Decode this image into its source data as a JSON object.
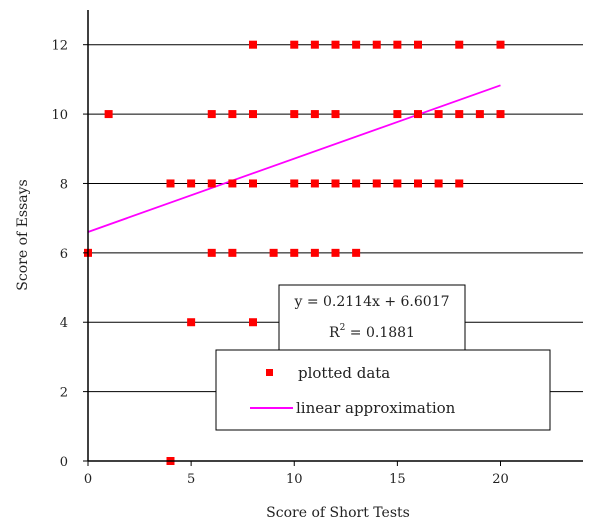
{
  "chart_data": {
    "type": "scatter",
    "title": "",
    "xlabel": "Score of Short Tests",
    "ylabel": "Score of Essays",
    "xlim": [
      0,
      24
    ],
    "ylim": [
      0,
      13
    ],
    "x_ticks": [
      0,
      5,
      10,
      15,
      20
    ],
    "y_ticks": [
      0,
      2,
      4,
      6,
      8,
      10,
      12
    ],
    "grid": "horizontal",
    "legend_placement": "bottom-center",
    "series": [
      {
        "name": "plotted data",
        "color": "#ff0000",
        "points": [
          [
            0,
            6
          ],
          [
            1,
            10
          ],
          [
            4,
            0
          ],
          [
            4,
            8
          ],
          [
            5,
            4
          ],
          [
            5,
            8
          ],
          [
            6,
            6
          ],
          [
            6,
            8
          ],
          [
            6,
            10
          ],
          [
            7,
            6
          ],
          [
            7,
            8
          ],
          [
            7,
            10
          ],
          [
            8,
            4
          ],
          [
            8,
            8
          ],
          [
            8,
            10
          ],
          [
            8,
            12
          ],
          [
            9,
            6
          ],
          [
            10,
            6
          ],
          [
            10,
            8
          ],
          [
            10,
            10
          ],
          [
            10,
            12
          ],
          [
            11,
            6
          ],
          [
            11,
            8
          ],
          [
            11,
            10
          ],
          [
            11,
            12
          ],
          [
            12,
            6
          ],
          [
            12,
            8
          ],
          [
            12,
            10
          ],
          [
            12,
            12
          ],
          [
            13,
            6
          ],
          [
            13,
            8
          ],
          [
            13,
            12
          ],
          [
            14,
            8
          ],
          [
            14,
            12
          ],
          [
            15,
            8
          ],
          [
            15,
            10
          ],
          [
            15,
            12
          ],
          [
            16,
            8
          ],
          [
            16,
            10
          ],
          [
            16,
            12
          ],
          [
            17,
            8
          ],
          [
            17,
            10
          ],
          [
            18,
            8
          ],
          [
            18,
            10
          ],
          [
            18,
            12
          ],
          [
            19,
            10
          ],
          [
            20,
            10
          ],
          [
            20,
            12
          ]
        ]
      },
      {
        "name": "linear approximation",
        "color": "#ff00ff",
        "slope": 0.2114,
        "intercept": 6.6017,
        "x_range": [
          0,
          20
        ]
      }
    ],
    "annotations": {
      "equation": "y = 0.2114x + 6.6017",
      "r2_prefix": "R",
      "r2_exp": "2",
      "r2_value": " = 0.1881"
    }
  }
}
